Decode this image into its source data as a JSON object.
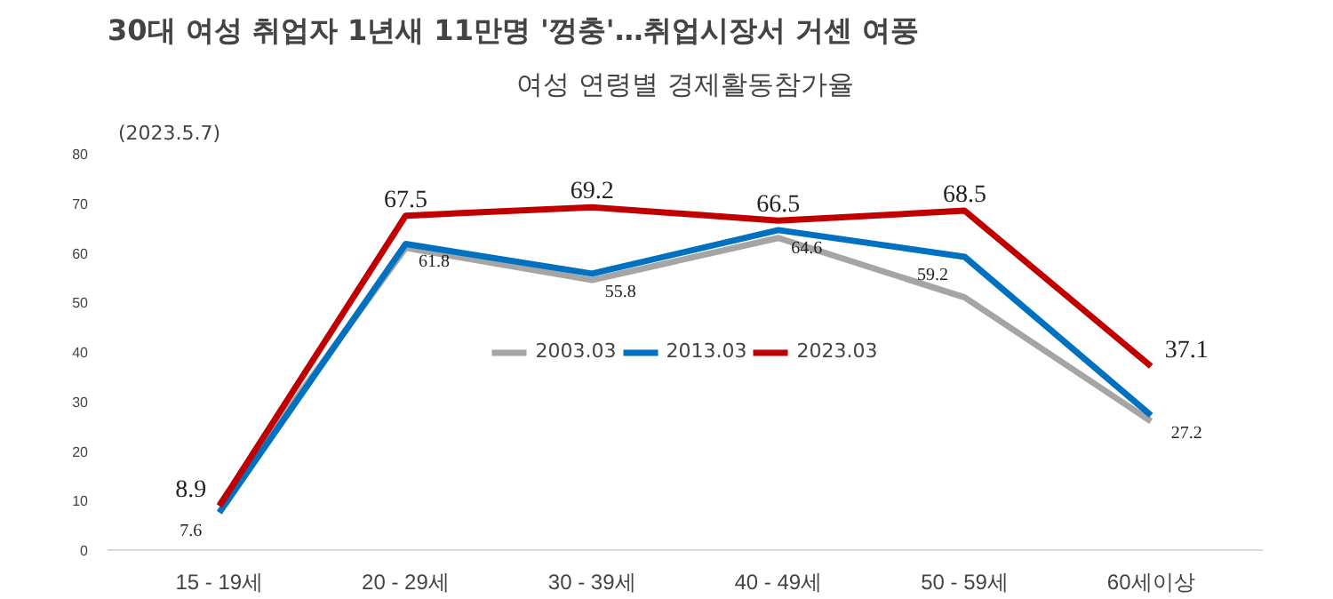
{
  "chart_data": {
    "type": "line",
    "title": "30대 여성 취업자 1년새 11만명 '껑충'…취업시장서 거센 여풍",
    "subtitle": "여성 연령별 경제활동참가율",
    "annotations": [
      "(2023.5.7)"
    ],
    "categories": [
      "15 - 19세",
      "20 - 29세",
      "30 - 39세",
      "40 - 49세",
      "50 - 59세",
      "60세이상"
    ],
    "ylim": [
      0,
      80
    ],
    "yticks": [
      0,
      10,
      20,
      30,
      40,
      50,
      60,
      70,
      80
    ],
    "grid": false,
    "legend": "center",
    "marker": "none",
    "line_style": "solid",
    "series": [
      {
        "name": "2003.03",
        "color": "#a5a5a5",
        "values": [
          9.2,
          61,
          54.5,
          63,
          51,
          26
        ]
      },
      {
        "name": "2013.03",
        "color": "#0070c0",
        "values": [
          7.6,
          61.8,
          55.8,
          64.6,
          59.2,
          27.2
        ],
        "value_labels": [
          "7.6",
          "61.8",
          "55.8",
          "64.6",
          "59.2",
          "27.2"
        ]
      },
      {
        "name": "2023.03",
        "color": "#c00000",
        "values": [
          8.9,
          67.5,
          69.2,
          66.5,
          68.5,
          37.1
        ],
        "value_labels": [
          "8.9",
          "67.5",
          "69.2",
          "66.5",
          "68.5",
          "37.1"
        ]
      }
    ]
  }
}
